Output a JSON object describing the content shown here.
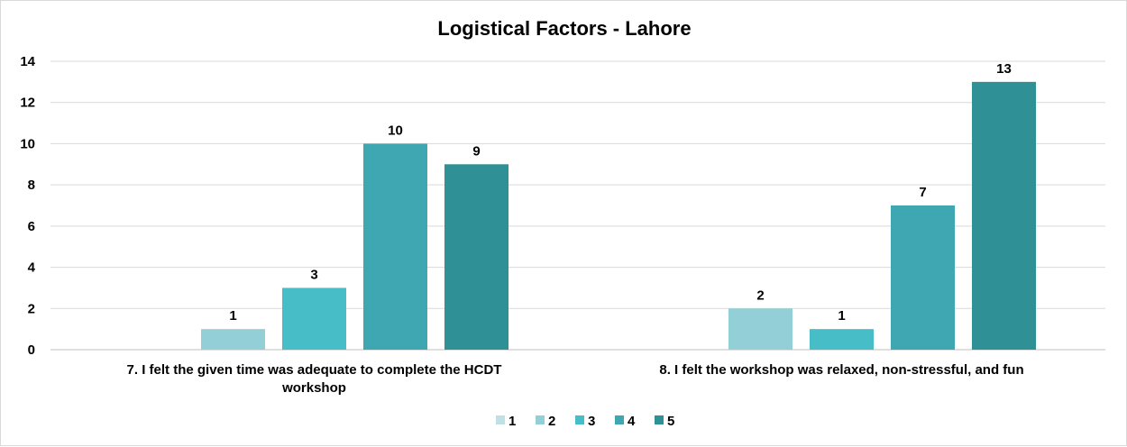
{
  "chart_data": {
    "type": "bar",
    "title": "Logistical Factors - Lahore",
    "categories": [
      [
        "7. I felt the given time was adequate to complete the HCDT",
        "workshop"
      ],
      [
        "8. I felt the workshop was relaxed, non-stressful, and fun"
      ]
    ],
    "series": [
      {
        "name": "1",
        "color": "#bfe1e3",
        "values": [
          0,
          0
        ],
        "labels": [
          "",
          ""
        ]
      },
      {
        "name": "2",
        "color": "#93cfd6",
        "values": [
          1,
          2
        ],
        "labels": [
          "1",
          "2"
        ]
      },
      {
        "name": "3",
        "color": "#47bec7",
        "values": [
          3,
          1
        ],
        "labels": [
          "3",
          "1"
        ]
      },
      {
        "name": "4",
        "color": "#3ea7b1",
        "values": [
          10,
          7
        ],
        "labels": [
          "10",
          "7"
        ]
      },
      {
        "name": "5",
        "color": "#2f9095",
        "values": [
          9,
          13
        ],
        "labels": [
          "9",
          "13"
        ]
      }
    ],
    "ylim": [
      0,
      14
    ],
    "yticks": [
      "0",
      "2",
      "4",
      "6",
      "8",
      "10",
      "12",
      "14"
    ],
    "grid": true,
    "legend_position": "bottom"
  }
}
